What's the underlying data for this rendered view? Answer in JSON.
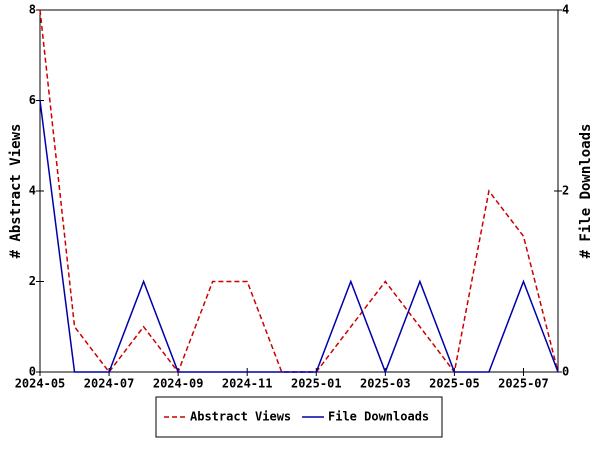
{
  "chart_data": {
    "type": "line",
    "x": [
      "2024-05",
      "2024-06",
      "2024-07",
      "2024-08",
      "2024-09",
      "2024-10",
      "2024-11",
      "2024-12",
      "2025-01",
      "2025-02",
      "2025-03",
      "2025-04",
      "2025-05",
      "2025-06",
      "2025-07",
      "2025-08"
    ],
    "xlim": [
      "2024-05",
      "2025-08"
    ],
    "xticks": [
      "2024-05",
      "2024-07",
      "2024-09",
      "2024-11",
      "2025-01",
      "2025-03",
      "2025-05",
      "2025-07"
    ],
    "ylabel": "# Abstract Views",
    "y2label": "# File Downloads",
    "ylim": [
      0,
      8
    ],
    "yticks": [
      0,
      2,
      4,
      6,
      8
    ],
    "y2lim": [
      0,
      4
    ],
    "y2ticks": [
      0,
      2,
      4
    ],
    "legend": "bottom",
    "series": [
      {
        "name": "Abstract Views",
        "color": "#cc0000",
        "style": "dashed",
        "axis": "y",
        "values": [
          8,
          1,
          0,
          1,
          0,
          2,
          2,
          0,
          0,
          1,
          2,
          1,
          0,
          4,
          3,
          0
        ]
      },
      {
        "name": "File Downloads",
        "color": "#0000aa",
        "style": "solid",
        "axis": "y2",
        "values": [
          3,
          0,
          0,
          1,
          0,
          0,
          0,
          0,
          0,
          1,
          0,
          1,
          0,
          0,
          1,
          0
        ]
      }
    ]
  }
}
